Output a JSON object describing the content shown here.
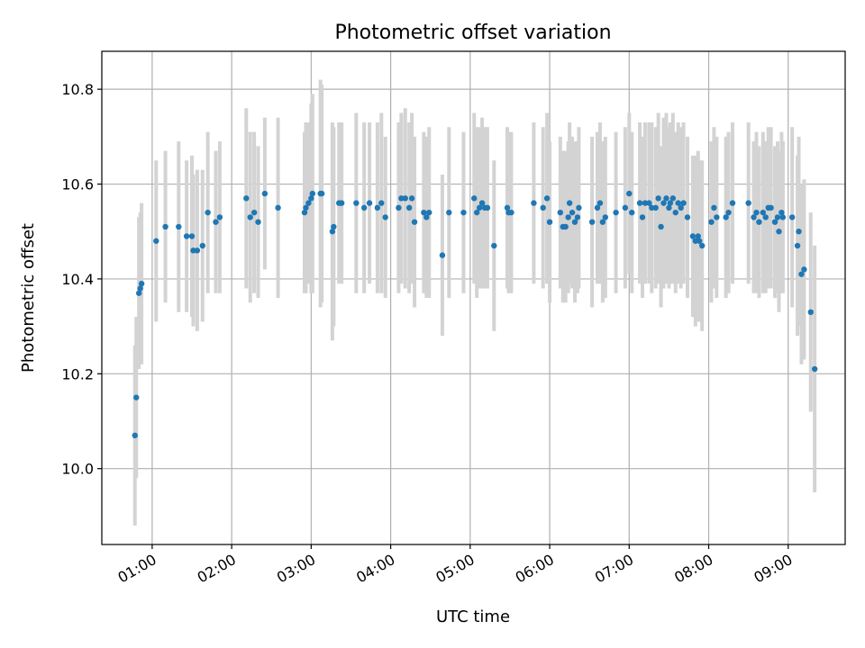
{
  "chart_data": {
    "type": "scatter",
    "title": "Photometric offset variation",
    "xlabel": "UTC time",
    "ylabel": "Photometric offset",
    "x_axis_kind": "time",
    "xlim": [
      "00:22",
      "09:43"
    ],
    "ylim": [
      9.84,
      10.88
    ],
    "x_ticks": [
      "01:00",
      "02:00",
      "03:00",
      "04:00",
      "05:00",
      "06:00",
      "07:00",
      "08:00",
      "09:00"
    ],
    "y_ticks": [
      "10.0",
      "10.2",
      "10.4",
      "10.6",
      "10.8"
    ],
    "grid": true,
    "colors": {
      "points": "#1f77b4",
      "errorbars": "#d3d3d3",
      "grid": "#b0b0b0"
    },
    "points": [
      [
        "00:47",
        10.07,
        0.19
      ],
      [
        "00:48",
        10.15,
        0.17
      ],
      [
        "00:50",
        10.37,
        0.16
      ],
      [
        "00:51",
        10.38,
        0.16
      ],
      [
        "00:52",
        10.39,
        0.17
      ],
      [
        "01:03",
        10.48,
        0.17
      ],
      [
        "01:10",
        10.51,
        0.16
      ],
      [
        "01:20",
        10.51,
        0.18
      ],
      [
        "01:26",
        10.49,
        0.16
      ],
      [
        "01:30",
        10.49,
        0.17
      ],
      [
        "01:31",
        10.46,
        0.16
      ],
      [
        "01:34",
        10.46,
        0.17
      ],
      [
        "01:38",
        10.47,
        0.16
      ],
      [
        "01:42",
        10.54,
        0.17
      ],
      [
        "01:48",
        10.52,
        0.15
      ],
      [
        "01:51",
        10.53,
        0.16
      ],
      [
        "02:11",
        10.57,
        0.19
      ],
      [
        "02:14",
        10.53,
        0.18
      ],
      [
        "02:17",
        10.54,
        0.17
      ],
      [
        "02:20",
        10.52,
        0.16
      ],
      [
        "02:25",
        10.58,
        0.16
      ],
      [
        "02:35",
        10.55,
        0.19
      ],
      [
        "02:55",
        10.54,
        0.17
      ],
      [
        "02:56",
        10.55,
        0.18
      ],
      [
        "02:58",
        10.56,
        0.17
      ],
      [
        "03:00",
        10.57,
        0.2
      ],
      [
        "03:01",
        10.58,
        0.21
      ],
      [
        "03:07",
        10.58,
        0.24
      ],
      [
        "03:08",
        10.58,
        0.23
      ],
      [
        "03:16",
        10.5,
        0.23
      ],
      [
        "03:17",
        10.51,
        0.21
      ],
      [
        "03:21",
        10.56,
        0.17
      ],
      [
        "03:23",
        10.56,
        0.17
      ],
      [
        "03:34",
        10.56,
        0.19
      ],
      [
        "03:40",
        10.55,
        0.18
      ],
      [
        "03:44",
        10.56,
        0.17
      ],
      [
        "03:50",
        10.55,
        0.18
      ],
      [
        "03:53",
        10.56,
        0.19
      ],
      [
        "03:56",
        10.53,
        0.17
      ],
      [
        "04:06",
        10.55,
        0.18
      ],
      [
        "04:08",
        10.57,
        0.18
      ],
      [
        "04:11",
        10.57,
        0.19
      ],
      [
        "04:14",
        10.55,
        0.18
      ],
      [
        "04:16",
        10.57,
        0.18
      ],
      [
        "04:18",
        10.52,
        0.18
      ],
      [
        "04:25",
        10.54,
        0.17
      ],
      [
        "04:27",
        10.53,
        0.17
      ],
      [
        "04:29",
        10.54,
        0.18
      ],
      [
        "04:39",
        10.45,
        0.17
      ],
      [
        "04:44",
        10.54,
        0.18
      ],
      [
        "04:55",
        10.54,
        0.17
      ],
      [
        "05:03",
        10.57,
        0.18
      ],
      [
        "05:05",
        10.54,
        0.18
      ],
      [
        "05:07",
        10.55,
        0.17
      ],
      [
        "05:09",
        10.56,
        0.18
      ],
      [
        "05:11",
        10.55,
        0.17
      ],
      [
        "05:13",
        10.55,
        0.17
      ],
      [
        "05:18",
        10.47,
        0.18
      ],
      [
        "05:28",
        10.55,
        0.17
      ],
      [
        "05:29",
        10.54,
        0.17
      ],
      [
        "05:31",
        10.54,
        0.17
      ],
      [
        "05:48",
        10.56,
        0.17
      ],
      [
        "05:55",
        10.55,
        0.17
      ],
      [
        "05:58",
        10.57,
        0.18
      ],
      [
        "06:00",
        10.52,
        0.17
      ],
      [
        "06:08",
        10.54,
        0.16
      ],
      [
        "06:10",
        10.51,
        0.16
      ],
      [
        "06:12",
        10.51,
        0.16
      ],
      [
        "06:14",
        10.53,
        0.16
      ],
      [
        "06:15",
        10.56,
        0.17
      ],
      [
        "06:17",
        10.54,
        0.16
      ],
      [
        "06:19",
        10.52,
        0.17
      ],
      [
        "06:21",
        10.53,
        0.16
      ],
      [
        "06:22",
        10.55,
        0.17
      ],
      [
        "06:32",
        10.52,
        0.18
      ],
      [
        "06:36",
        10.55,
        0.16
      ],
      [
        "06:38",
        10.56,
        0.17
      ],
      [
        "06:40",
        10.52,
        0.17
      ],
      [
        "06:42",
        10.53,
        0.17
      ],
      [
        "06:50",
        10.54,
        0.17
      ],
      [
        "06:57",
        10.55,
        0.17
      ],
      [
        "07:00",
        10.58,
        0.17
      ],
      [
        "07:02",
        10.54,
        0.17
      ],
      [
        "07:08",
        10.56,
        0.17
      ],
      [
        "07:10",
        10.53,
        0.17
      ],
      [
        "07:12",
        10.56,
        0.17
      ],
      [
        "07:15",
        10.56,
        0.17
      ],
      [
        "07:17",
        10.55,
        0.18
      ],
      [
        "07:20",
        10.55,
        0.17
      ],
      [
        "07:22",
        10.57,
        0.18
      ],
      [
        "07:24",
        10.51,
        0.17
      ],
      [
        "07:26",
        10.56,
        0.18
      ],
      [
        "07:28",
        10.57,
        0.18
      ],
      [
        "07:30",
        10.55,
        0.17
      ],
      [
        "07:31",
        10.56,
        0.17
      ],
      [
        "07:33",
        10.57,
        0.18
      ],
      [
        "07:35",
        10.54,
        0.17
      ],
      [
        "07:37",
        10.56,
        0.17
      ],
      [
        "07:39",
        10.55,
        0.17
      ],
      [
        "07:41",
        10.56,
        0.17
      ],
      [
        "07:44",
        10.53,
        0.17
      ],
      [
        "07:48",
        10.49,
        0.17
      ],
      [
        "07:50",
        10.48,
        0.18
      ],
      [
        "07:52",
        10.49,
        0.18
      ],
      [
        "07:53",
        10.48,
        0.17
      ],
      [
        "07:55",
        10.47,
        0.18
      ],
      [
        "08:02",
        10.52,
        0.17
      ],
      [
        "08:04",
        10.55,
        0.17
      ],
      [
        "08:06",
        10.53,
        0.17
      ],
      [
        "08:13",
        10.53,
        0.17
      ],
      [
        "08:15",
        10.54,
        0.17
      ],
      [
        "08:18",
        10.56,
        0.17
      ],
      [
        "08:30",
        10.56,
        0.17
      ],
      [
        "08:34",
        10.53,
        0.16
      ],
      [
        "08:36",
        10.54,
        0.17
      ],
      [
        "08:38",
        10.52,
        0.16
      ],
      [
        "08:41",
        10.54,
        0.17
      ],
      [
        "08:43",
        10.53,
        0.16
      ],
      [
        "08:45",
        10.55,
        0.17
      ],
      [
        "08:47",
        10.55,
        0.17
      ],
      [
        "08:50",
        10.52,
        0.16
      ],
      [
        "08:52",
        10.53,
        0.16
      ],
      [
        "08:53",
        10.5,
        0.17
      ],
      [
        "08:55",
        10.54,
        0.17
      ],
      [
        "08:56",
        10.53,
        0.16
      ],
      [
        "09:03",
        10.53,
        0.19
      ],
      [
        "09:07",
        10.47,
        0.19
      ],
      [
        "09:08",
        10.5,
        0.2
      ],
      [
        "09:10",
        10.41,
        0.19
      ],
      [
        "09:12",
        10.42,
        0.19
      ],
      [
        "09:17",
        10.33,
        0.21
      ],
      [
        "09:20",
        10.21,
        0.26
      ]
    ]
  }
}
